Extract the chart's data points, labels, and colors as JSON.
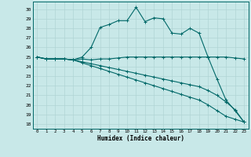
{
  "xlabel": "Humidex (Indice chaleur)",
  "ylabel": "",
  "background_color": "#c8e8e8",
  "grid_color": "#b0d4d4",
  "line_color": "#006868",
  "xlim": [
    -0.5,
    23.5
  ],
  "ylim": [
    17.5,
    30.8
  ],
  "yticks": [
    18,
    19,
    20,
    21,
    22,
    23,
    24,
    25,
    26,
    27,
    28,
    29,
    30
  ],
  "xticks": [
    0,
    1,
    2,
    3,
    4,
    5,
    6,
    7,
    8,
    9,
    10,
    11,
    12,
    13,
    14,
    15,
    16,
    17,
    18,
    19,
    20,
    21,
    22,
    23
  ],
  "xtick_labels": [
    "0",
    "1",
    "2",
    "3",
    "4",
    "5",
    "6",
    "7",
    "8",
    "9",
    "10",
    "11",
    "12",
    "13",
    "14",
    "15",
    "16",
    "17",
    "18",
    "19",
    "20",
    "21",
    "22",
    "23"
  ],
  "series": [
    [
      25.0,
      24.8,
      24.8,
      24.8,
      24.7,
      25.0,
      26.0,
      28.1,
      28.4,
      28.8,
      28.8,
      30.2,
      28.7,
      29.1,
      29.0,
      27.5,
      27.4,
      28.0,
      27.5,
      25.0,
      22.7,
      20.5,
      19.4,
      18.2
    ],
    [
      25.0,
      24.8,
      24.8,
      24.8,
      24.7,
      24.8,
      24.7,
      24.8,
      24.8,
      24.9,
      25.0,
      25.0,
      25.0,
      25.0,
      25.0,
      25.0,
      25.0,
      25.0,
      25.0,
      25.0,
      25.0,
      25.0,
      24.9,
      24.8
    ],
    [
      25.0,
      24.8,
      24.8,
      24.8,
      24.7,
      24.5,
      24.3,
      24.1,
      23.9,
      23.7,
      23.5,
      23.3,
      23.1,
      22.9,
      22.7,
      22.5,
      22.3,
      22.1,
      21.9,
      21.5,
      21.0,
      20.3,
      19.5,
      18.2
    ],
    [
      25.0,
      24.8,
      24.8,
      24.8,
      24.7,
      24.4,
      24.1,
      23.8,
      23.5,
      23.2,
      22.9,
      22.6,
      22.3,
      22.0,
      21.7,
      21.4,
      21.1,
      20.8,
      20.5,
      20.0,
      19.4,
      18.8,
      18.5,
      18.2
    ]
  ]
}
